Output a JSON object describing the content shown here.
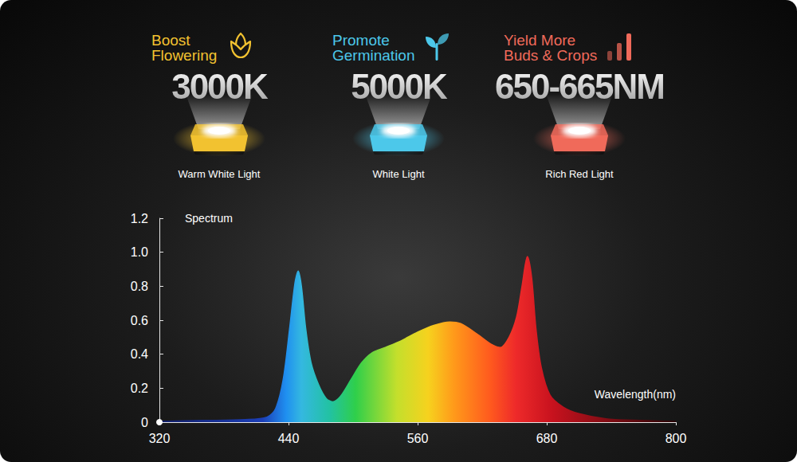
{
  "features": [
    {
      "title": [
        "Boost",
        "Flowering"
      ],
      "value": "3000K",
      "caption": "Warm White Light",
      "color": "#f2c230"
    },
    {
      "title": [
        "Promote",
        "Germination"
      ],
      "value": "5000K",
      "caption": "White Light",
      "color": "#4cc8ea"
    },
    {
      "title": [
        "Yield More",
        "Buds & Crops"
      ],
      "value": "650-665NM",
      "caption": "Rich Red Light",
      "color": "#f06a5a"
    }
  ],
  "chart_data": {
    "type": "area",
    "xlabel": "Wavelength(nm)",
    "ylabel": "Spectrum",
    "x": [
      320,
      360,
      400,
      420,
      428,
      435,
      441,
      446,
      449,
      452,
      456,
      461,
      468,
      475,
      481,
      488,
      498,
      508,
      518,
      530,
      545,
      560,
      575,
      590,
      600,
      615,
      628,
      637,
      645,
      652,
      657,
      662,
      666,
      670,
      675,
      683,
      695,
      710,
      735,
      770,
      800
    ],
    "values": [
      0.005,
      0.01,
      0.015,
      0.03,
      0.08,
      0.25,
      0.55,
      0.82,
      0.89,
      0.8,
      0.55,
      0.35,
      0.22,
      0.14,
      0.12,
      0.15,
      0.25,
      0.35,
      0.41,
      0.44,
      0.48,
      0.53,
      0.57,
      0.59,
      0.58,
      0.52,
      0.46,
      0.44,
      0.5,
      0.62,
      0.8,
      0.975,
      0.85,
      0.55,
      0.32,
      0.16,
      0.09,
      0.05,
      0.02,
      0.01,
      0.005
    ],
    "xlim": [
      320,
      800
    ],
    "xticks": [
      320,
      440,
      560,
      680,
      800
    ],
    "ylim": [
      0,
      1.2
    ],
    "yticks": [
      0,
      0.2,
      0.4,
      0.6,
      0.8,
      {
        "value": 1,
        "label": "1.0"
      },
      1.2
    ],
    "grid": false
  }
}
